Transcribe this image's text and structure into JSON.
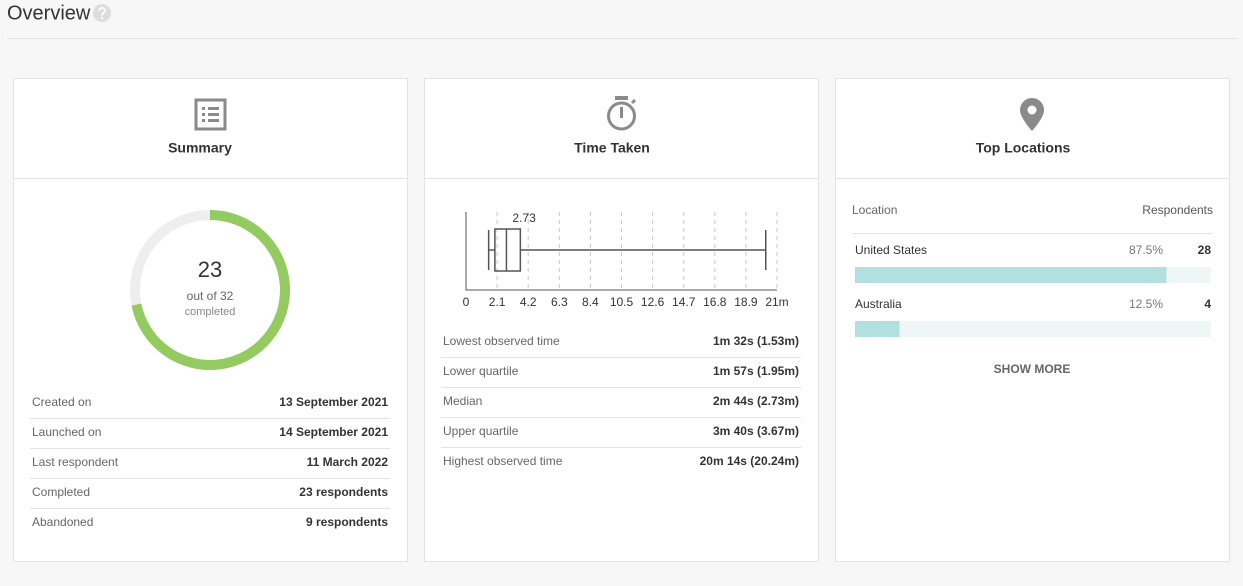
{
  "header": {
    "title": "Overview"
  },
  "summary": {
    "title": "Summary",
    "donut": {
      "value": 23,
      "total": {
        "value": 32,
        "label": "out of 32"
      },
      "caption": "completed",
      "color": "#94cb61"
    },
    "rows": [
      [
        "Created on",
        "13 September 2021"
      ],
      [
        "Launched on",
        "14 September 2021"
      ],
      [
        "Last respondent",
        "11 March 2022"
      ],
      [
        "Completed",
        "23 respondents"
      ],
      [
        "Abandoned",
        "9 respondents"
      ]
    ]
  },
  "time_taken": {
    "title": "Time Taken",
    "chart": {
      "type": "box",
      "xlim": [
        0,
        21
      ],
      "xticks": [
        0,
        2.1,
        4.2,
        6.3,
        8.4,
        10.5,
        12.6,
        14.7,
        16.8,
        18.9,
        {
          "value": 21,
          "label": "21m"
        }
      ],
      "min": 1.53,
      "q1": 1.95,
      "median": 2.73,
      "q3": 3.67,
      "max": 20.24,
      "grid": true
    },
    "rows": [
      [
        "Lowest observed time",
        "1m 32s (1.53m)"
      ],
      [
        "Lower quartile",
        "1m 57s (1.95m)"
      ],
      [
        "Median",
        "2m 44s (2.73m)"
      ],
      [
        "Upper quartile",
        "3m 40s (3.67m)"
      ],
      [
        "Highest observed time",
        "20m 14s (20.24m)"
      ]
    ]
  },
  "top_locations": {
    "title": "Top Locations",
    "columns": [
      "Location",
      "Respondents"
    ],
    "chart": {
      "type": "bar",
      "categories": [
        "United States",
        "Australia"
      ],
      "values": [
        87.5,
        12.5
      ],
      "value_labels": [
        "87.5%",
        "12.5%"
      ],
      "counts": [
        28,
        4
      ],
      "xlim": [
        0,
        100
      ],
      "color": "#b2dfdf"
    },
    "button": "SHOW MORE"
  }
}
